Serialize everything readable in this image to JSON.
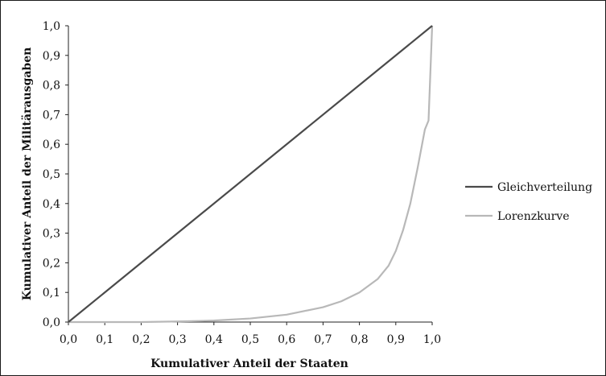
{
  "chart_data": {
    "type": "line",
    "xlabel": "Kumulativer Anteil der Staaten",
    "ylabel": "Kumulativer Anteil der Militärausgaben",
    "xlim": [
      0,
      1
    ],
    "ylim": [
      0,
      1
    ],
    "x_ticks": [
      "0,0",
      "0,1",
      "0,2",
      "0,3",
      "0,4",
      "0,5",
      "0,6",
      "0,7",
      "0,8",
      "0,9",
      "1,0"
    ],
    "y_ticks": [
      "0,0",
      "0,1",
      "0,2",
      "0,3",
      "0,4",
      "0,5",
      "0,6",
      "0,7",
      "0,8",
      "0,9",
      "1,0"
    ],
    "grid": false,
    "legend_position": "right",
    "series": [
      {
        "name": "Gleichverteilung",
        "color": "#4a4a4a",
        "points": [
          [
            0,
            0
          ],
          [
            1,
            1
          ]
        ]
      },
      {
        "name": "Lorenzkurve",
        "color": "#b8b8b8",
        "points": [
          [
            0,
            0
          ],
          [
            0.2,
            0.0
          ],
          [
            0.3,
            0.002
          ],
          [
            0.4,
            0.005
          ],
          [
            0.5,
            0.012
          ],
          [
            0.6,
            0.025
          ],
          [
            0.7,
            0.05
          ],
          [
            0.75,
            0.07
          ],
          [
            0.8,
            0.1
          ],
          [
            0.85,
            0.145
          ],
          [
            0.88,
            0.19
          ],
          [
            0.9,
            0.24
          ],
          [
            0.92,
            0.31
          ],
          [
            0.94,
            0.4
          ],
          [
            0.96,
            0.52
          ],
          [
            0.98,
            0.65
          ],
          [
            0.99,
            0.68
          ],
          [
            1.0,
            1.0
          ]
        ]
      }
    ]
  }
}
